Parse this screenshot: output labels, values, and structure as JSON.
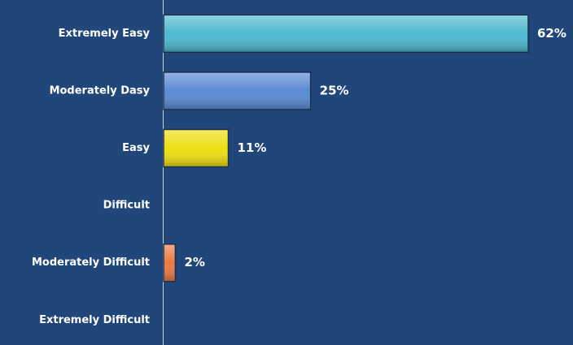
{
  "chart_data": {
    "type": "hbar",
    "categories": [
      "Extremely Easy",
      "Moderately  Dasy",
      "Easy",
      "Difficult",
      "Moderately Difficult",
      "Extremely Difficult"
    ],
    "values": [
      62,
      25,
      11,
      0,
      2,
      0
    ],
    "value_labels": [
      "62%",
      "25%",
      "11%",
      null,
      "2%",
      null
    ],
    "colors": [
      "#4fb9d1",
      "#5a8bd3",
      "#eedf12",
      null,
      "#e97b45",
      null
    ]
  }
}
